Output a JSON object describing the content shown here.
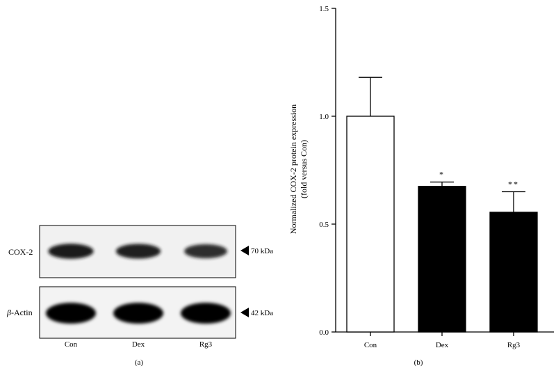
{
  "panel_a": {
    "label": "(a)",
    "blots": [
      {
        "protein": "COX-2",
        "italic_prefix": "",
        "marker": "70 kDa",
        "band_color": "#151515"
      },
      {
        "protein": "-Actin",
        "italic_prefix": "β",
        "marker": "42 kDa",
        "band_color": "#050505"
      }
    ],
    "lanes": [
      "Con",
      "Dex",
      "Rg3"
    ],
    "band_intensity": [
      [
        0.95,
        0.9,
        0.75
      ],
      [
        1.0,
        1.0,
        1.0
      ]
    ]
  },
  "panel_b": {
    "label": "(b)"
  },
  "chart_data": {
    "type": "bar",
    "title": "",
    "categories": [
      "Con",
      "Dex",
      "Rg3"
    ],
    "series": [
      {
        "values": [
          1.0,
          0.675,
          0.555
        ],
        "errors": [
          0.18,
          0.02,
          0.095
        ]
      }
    ],
    "bar_colors": [
      "#ffffff",
      "#000000",
      "#000000"
    ],
    "significance": [
      "",
      "*",
      "**"
    ],
    "xlabel": "",
    "ylabel": "Normalized COX-2 protein expression",
    "ylabel_line2": "(fold versus Con)",
    "ylim": [
      0,
      1.5
    ],
    "yticks": [
      0.0,
      0.5,
      1.0,
      1.5
    ],
    "ytick_labels": [
      "0.0",
      "0.5",
      "1.0",
      "1.5"
    ],
    "grid": false
  }
}
